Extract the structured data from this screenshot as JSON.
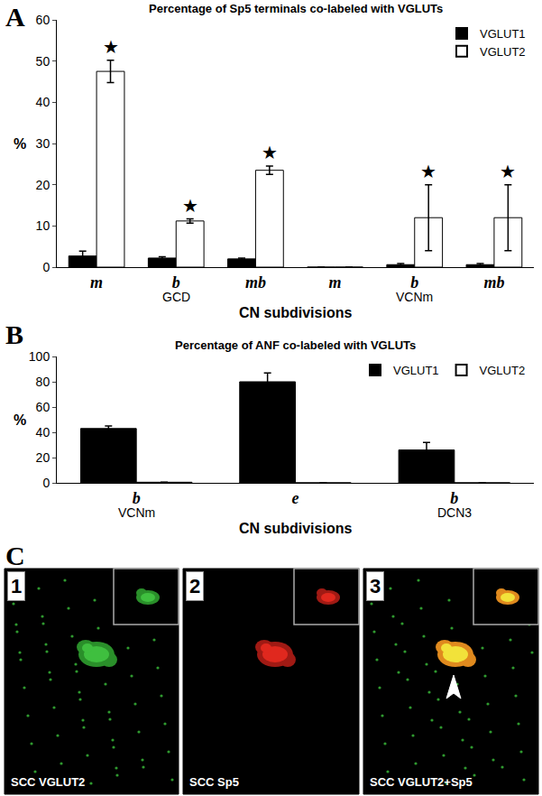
{
  "chart_data": [
    {
      "panel": "A",
      "type": "bar",
      "title": "Percentage of Sp5 terminals co-labeled with VGLUTs",
      "y_label": "%",
      "x_label": "CN subdivisions",
      "categories": [
        "m",
        "b",
        "mb",
        "m",
        "b",
        "mb"
      ],
      "groups": [
        {
          "label": "GCD",
          "category": 1
        },
        {
          "label": "VCNm",
          "category": 4
        }
      ],
      "series": [
        {
          "name": "VGLUT1",
          "color": "#000000",
          "values": [
            2.7,
            2.2,
            2.0,
            0,
            0.6,
            0.6
          ],
          "errors": [
            1.2,
            0.3,
            0.2,
            0,
            0.3,
            0.3
          ]
        },
        {
          "name": "VGLUT2",
          "color": "#ffffff",
          "values": [
            47.5,
            11.2,
            23.5,
            0,
            12,
            12
          ],
          "errors": [
            2.7,
            0.5,
            1.0,
            0,
            8,
            8
          ]
        }
      ],
      "significance": {
        "text": "★",
        "series": "VGLUT2",
        "categories": [
          0,
          1,
          2,
          4,
          5
        ]
      },
      "ylim": [
        0,
        60
      ],
      "yticks": [
        0,
        10,
        20,
        30,
        40,
        50,
        60
      ],
      "grid": false,
      "legend": "top right"
    },
    {
      "panel": "B",
      "type": "bar",
      "title": "Percentage of ANF co-labeled with VGLUTs",
      "y_label": "%",
      "x_label": "CN subdivisions",
      "categories": [
        "b",
        "e",
        "b"
      ],
      "groups": [
        {
          "label": "VCNm",
          "category": 0
        },
        {
          "label": "DCN3",
          "category": 2
        }
      ],
      "series": [
        {
          "name": "VGLUT1",
          "color": "#000000",
          "values": [
            43,
            80,
            26
          ],
          "errors": [
            2,
            7,
            6
          ]
        },
        {
          "name": "VGLUT2",
          "color": "#ffffff",
          "values": [
            0.5,
            0,
            0
          ],
          "errors": [
            0,
            0,
            0
          ]
        }
      ],
      "ylim": [
        0,
        100
      ],
      "yticks": [
        0,
        20,
        40,
        60,
        80,
        100
      ],
      "grid": false,
      "legend": "top right"
    }
  ],
  "images": {
    "panel": "C",
    "tiles": [
      {
        "number": "1",
        "caption": "SCC VGLUT2"
      },
      {
        "number": "2",
        "caption": "SCC Sp5"
      },
      {
        "number": "3",
        "caption": "SCC VGLUT2+Sp5"
      }
    ]
  }
}
